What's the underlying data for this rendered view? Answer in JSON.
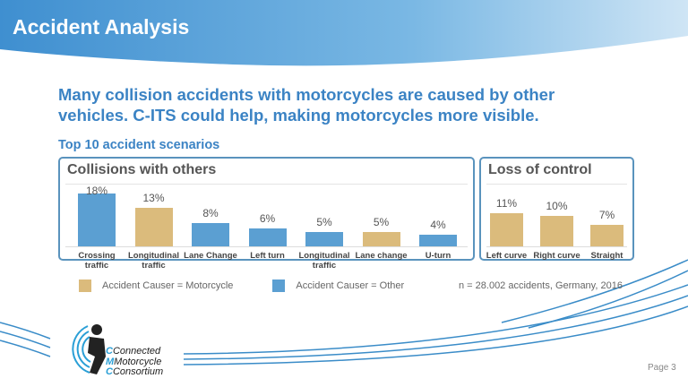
{
  "header": {
    "title": "Accident Analysis"
  },
  "headline": "Many collision accidents with motorcycles are caused by other vehicles. C-ITS could help, making motorcycles more visible.",
  "subtitle": "Top 10 accident scenarios",
  "colors": {
    "motorcycle": "#dbbb7c",
    "other": "#5b9fd2",
    "accent": "#3b83c4"
  },
  "chart_data": [
    {
      "type": "bar",
      "title": "Collisions with others",
      "categories": [
        "Crossing traffic",
        "Longitudinal traffic",
        "Lane Change",
        "Left turn",
        "Longitudinal traffic",
        "Lane change",
        "U-turn"
      ],
      "values": [
        18,
        13,
        8,
        6,
        5,
        5,
        4
      ],
      "labels": [
        "18%",
        "13%",
        "8%",
        "6%",
        "5%",
        "5%",
        "4%"
      ],
      "causer": [
        "Other",
        "Motorcycle",
        "Other",
        "Other",
        "Other",
        "Motorcycle",
        "Other"
      ],
      "unit": "%"
    },
    {
      "type": "bar",
      "title": "Loss of control",
      "categories": [
        "Left curve",
        "Right curve",
        "Straight"
      ],
      "values": [
        11,
        10,
        7
      ],
      "labels": [
        "11%",
        "10%",
        "7%"
      ],
      "causer": [
        "Motorcycle",
        "Motorcycle",
        "Motorcycle"
      ],
      "unit": "%"
    }
  ],
  "legend": [
    {
      "label": "Accident Causer = Motorcycle",
      "color": "#dbbb7c"
    },
    {
      "label": "Accident Causer = Other",
      "color": "#5b9fd2"
    }
  ],
  "note": "n = 28.002 accidents, Germany, 2016",
  "logo": {
    "line1": "Connected",
    "line2": "Motorcycle",
    "line3": "Consortium"
  },
  "footer": {
    "page": "Page 3"
  }
}
